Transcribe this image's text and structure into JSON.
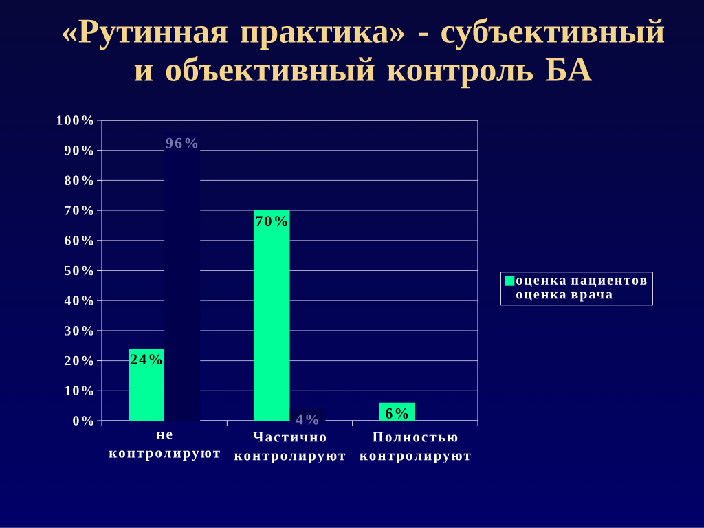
{
  "chart_data": {
    "type": "bar",
    "title": "«Рутинная практика» - субъективный и объективный контроль БА",
    "categories": [
      "не контролируют",
      "Частично контролируют",
      "Полностью контролируют"
    ],
    "series": [
      {
        "name": "оценка пациентов",
        "color": "#00ff99",
        "values": [
          24,
          70,
          6
        ],
        "value_labels": [
          "24%",
          "70%",
          "6%"
        ]
      },
      {
        "name": "оценка врача",
        "color": "#00004c",
        "values": [
          96,
          4,
          null
        ],
        "value_labels": [
          "96%",
          "4%",
          null
        ]
      }
    ],
    "ylim": [
      0,
      100
    ],
    "yticks": [
      {
        "value": 0,
        "label": "0%"
      },
      {
        "value": 10,
        "label": "10%"
      },
      {
        "value": 20,
        "label": "20%"
      },
      {
        "value": 30,
        "label": "30%"
      },
      {
        "value": 40,
        "label": "40%"
      },
      {
        "value": 50,
        "label": "50%"
      },
      {
        "value": 60,
        "label": "60%"
      },
      {
        "value": 70,
        "label": "70%"
      },
      {
        "value": 80,
        "label": "80%"
      },
      {
        "value": 90,
        "label": "90%"
      },
      {
        "value": 100,
        "label": "100%"
      }
    ],
    "grid": "y",
    "legend": "right"
  }
}
